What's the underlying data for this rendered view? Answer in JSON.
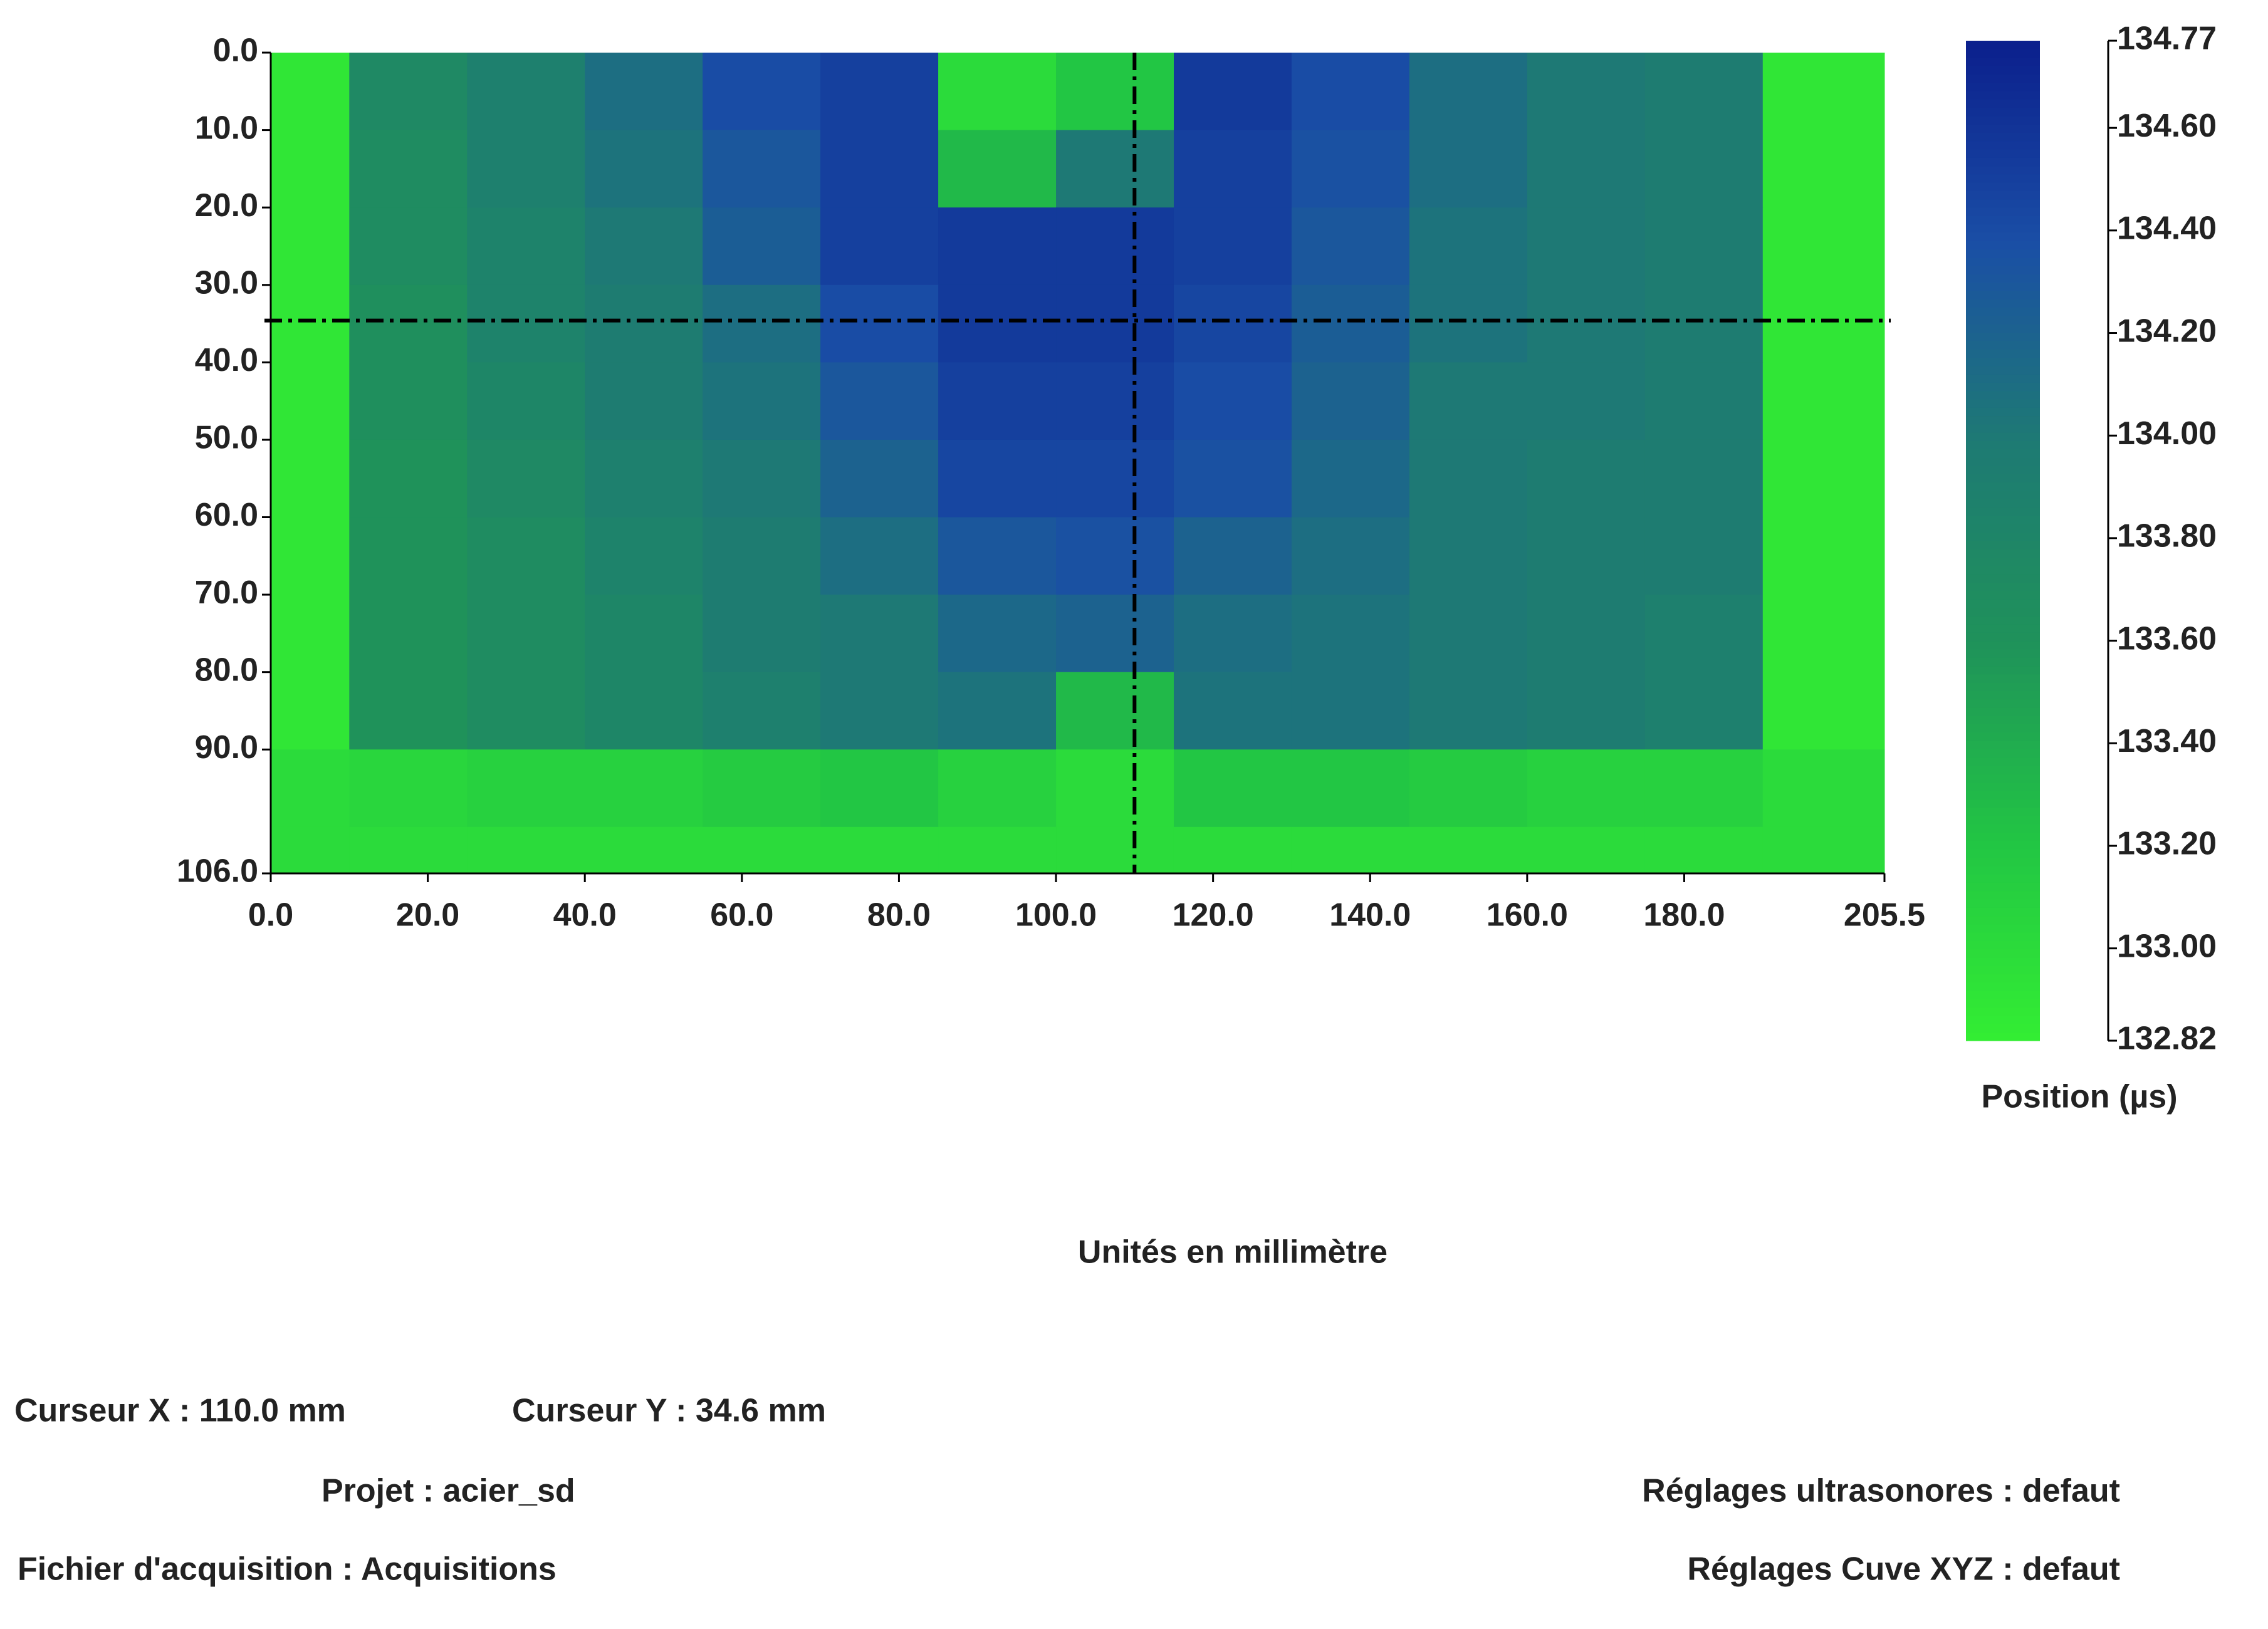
{
  "chart_data": {
    "type": "heatmap",
    "xlabel": "Unités en millimètre",
    "zlabel": "Position (µs)",
    "xlim": [
      0,
      205.5
    ],
    "ylim": [
      0,
      106
    ],
    "zlim": [
      132.82,
      134.77
    ],
    "xticks": [
      {
        "value": 0,
        "label": "0.0"
      },
      {
        "value": 20,
        "label": "20.0"
      },
      {
        "value": 40,
        "label": "40.0"
      },
      {
        "value": 60,
        "label": "60.0"
      },
      {
        "value": 80,
        "label": "80.0"
      },
      {
        "value": 100,
        "label": "100.0"
      },
      {
        "value": 120,
        "label": "120.0"
      },
      {
        "value": 140,
        "label": "140.0"
      },
      {
        "value": 160,
        "label": "160.0"
      },
      {
        "value": 180,
        "label": "180.0"
      },
      205.5
    ],
    "yticks": [
      {
        "value": 0,
        "label": "0.0"
      },
      {
        "value": 10,
        "label": "10.0"
      },
      {
        "value": 20,
        "label": "20.0"
      },
      {
        "value": 30,
        "label": "30.0"
      },
      {
        "value": 40,
        "label": "40.0"
      },
      {
        "value": 50,
        "label": "50.0"
      },
      {
        "value": 60,
        "label": "60.0"
      },
      {
        "value": 70,
        "label": "70.0"
      },
      {
        "value": 80,
        "label": "80.0"
      },
      {
        "value": 90,
        "label": "90.0"
      },
      {
        "value": 106,
        "label": "106.0"
      }
    ],
    "zticks": [
      134.77,
      {
        "value": 134.6,
        "label": "134.60"
      },
      {
        "value": 134.4,
        "label": "134.40"
      },
      {
        "value": 134.2,
        "label": "134.20"
      },
      {
        "value": 134,
        "label": "134.00"
      },
      {
        "value": 133.8,
        "label": "133.80"
      },
      {
        "value": 133.6,
        "label": "133.60"
      },
      {
        "value": 133.4,
        "label": "133.40"
      },
      {
        "value": 133.2,
        "label": "133.20"
      },
      {
        "value": 133,
        "label": "133.00"
      },
      132.82
    ],
    "colorscale": [
      "#33ee33",
      "#22c544",
      "#1f925a",
      "#1e7a74",
      "#1a4ea6",
      "#0b1f8c"
    ],
    "xbins": [
      0,
      10,
      25,
      40,
      55,
      70,
      85,
      100,
      115,
      130,
      145,
      160,
      175,
      190,
      205.5
    ],
    "ybins": [
      0,
      10,
      20,
      30,
      40,
      50,
      60,
      70,
      80,
      90,
      100,
      106
    ],
    "z": [
      [
        132.9,
        133.75,
        133.9,
        134.1,
        134.4,
        134.5,
        133.0,
        133.2,
        134.55,
        134.4,
        134.1,
        134.0,
        133.95,
        132.9
      ],
      [
        132.9,
        133.7,
        133.9,
        134.05,
        134.3,
        134.5,
        133.3,
        134.0,
        134.5,
        134.35,
        134.1,
        134.0,
        133.95,
        132.9
      ],
      [
        132.9,
        133.7,
        133.85,
        134.0,
        134.25,
        134.5,
        134.55,
        134.55,
        134.5,
        134.3,
        134.05,
        134.0,
        133.95,
        132.9
      ],
      [
        132.9,
        133.65,
        133.85,
        133.95,
        134.1,
        134.4,
        134.55,
        134.55,
        134.45,
        134.25,
        134.05,
        134.0,
        133.95,
        132.9
      ],
      [
        132.9,
        133.65,
        133.8,
        133.95,
        134.05,
        134.3,
        134.5,
        134.5,
        134.4,
        134.2,
        134.0,
        134.0,
        133.95,
        132.9
      ],
      [
        132.9,
        133.6,
        133.75,
        133.9,
        134.0,
        134.2,
        134.45,
        134.45,
        134.35,
        134.15,
        134.0,
        133.95,
        133.95,
        132.9
      ],
      [
        132.9,
        133.6,
        133.7,
        133.85,
        133.95,
        134.1,
        134.3,
        134.35,
        134.2,
        134.1,
        134.0,
        133.95,
        133.95,
        132.9
      ],
      [
        132.9,
        133.6,
        133.7,
        133.8,
        133.95,
        134.0,
        134.15,
        134.2,
        134.1,
        134.05,
        134.0,
        133.95,
        133.9,
        132.9
      ],
      [
        132.9,
        133.6,
        133.7,
        133.8,
        133.9,
        134.0,
        134.05,
        133.3,
        134.05,
        134.05,
        134.0,
        133.95,
        133.9,
        132.9
      ],
      [
        133.0,
        133.05,
        133.1,
        133.1,
        133.15,
        133.2,
        133.1,
        133.0,
        133.2,
        133.2,
        133.15,
        133.1,
        133.1,
        133.0
      ],
      [
        133.0,
        133.0,
        133.0,
        133.0,
        133.0,
        133.0,
        133.0,
        133.0,
        133.0,
        133.0,
        133.0,
        133.0,
        133.0,
        133.0
      ]
    ],
    "cursor_x": {
      "value": 110,
      "label": "Curseur X : 110.0 mm"
    },
    "cursor_y": {
      "value": 34.6,
      "label": "Curseur Y : 34.6 mm"
    },
    "project": "Projet : acier_sd",
    "ultrasound_settings": "Réglages ultrasonores : defaut",
    "acquisition_file": "Fichier d'acquisition : Acquisitions",
    "tank_settings": "Réglages Cuve XYZ : defaut"
  }
}
